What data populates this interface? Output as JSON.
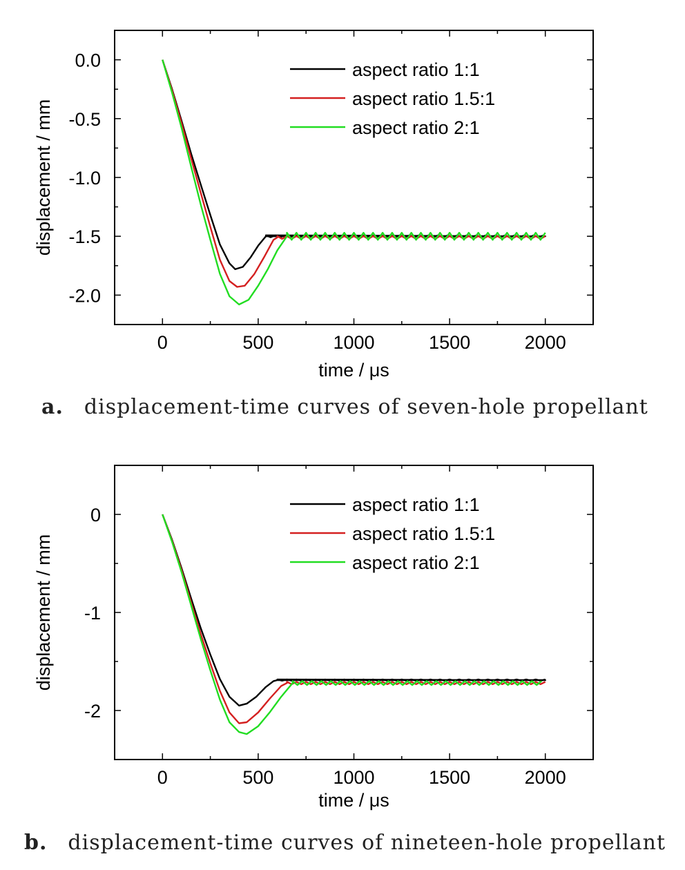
{
  "colors": {
    "ratio_1": "#000000",
    "ratio_1_5": "#d42020",
    "ratio_2": "#22dd22"
  },
  "chart_data": [
    {
      "type": "line",
      "caption_letter": "a.",
      "caption": "displacement-time curves of seven-hole propellant",
      "xlabel": "time / μs",
      "ylabel": "displacement / mm",
      "xlim": [
        -250,
        2250
      ],
      "ylim": [
        -2.25,
        0.25
      ],
      "xticks": [
        0,
        500,
        1000,
        1500,
        2000
      ],
      "xtick_labels": [
        "0",
        "500",
        "1000",
        "1500",
        "2000"
      ],
      "yticks": [
        0.0,
        -0.5,
        -1.0,
        -1.5,
        -2.0
      ],
      "ytick_labels": [
        "0.0",
        "-0.5",
        "-1.0",
        "-1.5",
        "-2.0"
      ],
      "legend_position": "top-right",
      "series": [
        {
          "name": "aspect ratio 1:1",
          "color": "#000000",
          "points": [
            [
              0,
              0
            ],
            [
              50,
              -0.25
            ],
            [
              100,
              -0.52
            ],
            [
              150,
              -0.8
            ],
            [
              200,
              -1.06
            ],
            [
              250,
              -1.32
            ],
            [
              300,
              -1.57
            ],
            [
              350,
              -1.73
            ],
            [
              380,
              -1.78
            ],
            [
              420,
              -1.76
            ],
            [
              460,
              -1.68
            ],
            [
              500,
              -1.58
            ],
            [
              540,
              -1.5
            ],
            [
              2000,
              -1.5
            ]
          ],
          "plateau": -1.5,
          "plateau_start": 540,
          "ripple_amp": 0.008,
          "ripple_period": 50
        },
        {
          "name": "aspect ratio 1.5:1",
          "color": "#d42020",
          "points": [
            [
              0,
              0
            ],
            [
              50,
              -0.26
            ],
            [
              100,
              -0.54
            ],
            [
              150,
              -0.84
            ],
            [
              200,
              -1.13
            ],
            [
              250,
              -1.42
            ],
            [
              300,
              -1.7
            ],
            [
              350,
              -1.88
            ],
            [
              390,
              -1.93
            ],
            [
              430,
              -1.92
            ],
            [
              480,
              -1.82
            ],
            [
              530,
              -1.68
            ],
            [
              580,
              -1.53
            ],
            [
              600,
              -1.51
            ]
          ],
          "plateau": -1.51,
          "plateau_start": 600,
          "ripple_amp": 0.012,
          "ripple_period": 50
        },
        {
          "name": "aspect ratio 2:1",
          "color": "#22dd22",
          "points": [
            [
              0,
              0
            ],
            [
              50,
              -0.28
            ],
            [
              100,
              -0.58
            ],
            [
              150,
              -0.91
            ],
            [
              200,
              -1.23
            ],
            [
              250,
              -1.53
            ],
            [
              300,
              -1.82
            ],
            [
              350,
              -2.01
            ],
            [
              400,
              -2.08
            ],
            [
              450,
              -2.04
            ],
            [
              500,
              -1.92
            ],
            [
              550,
              -1.78
            ],
            [
              600,
              -1.62
            ],
            [
              650,
              -1.5
            ]
          ],
          "plateau": -1.5,
          "plateau_start": 650,
          "ripple_amp": 0.03,
          "ripple_period": 50
        }
      ]
    },
    {
      "type": "line",
      "caption_letter": "b.",
      "caption": "displacement-time curves of nineteen-hole propellant",
      "xlabel": "time / μs",
      "ylabel": "displacement / mm",
      "xlim": [
        -250,
        2250
      ],
      "ylim": [
        -2.5,
        0.5
      ],
      "xticks": [
        0,
        500,
        1000,
        1500,
        2000
      ],
      "xtick_labels": [
        "0",
        "500",
        "1000",
        "1500",
        "2000"
      ],
      "yticks": [
        0,
        -1,
        -2
      ],
      "ytick_labels": [
        "0",
        "-1",
        "-2"
      ],
      "legend_position": "top-right",
      "series": [
        {
          "name": "aspect ratio 1:1",
          "color": "#000000",
          "points": [
            [
              0,
              0
            ],
            [
              50,
              -0.26
            ],
            [
              100,
              -0.55
            ],
            [
              150,
              -0.86
            ],
            [
              200,
              -1.16
            ],
            [
              250,
              -1.43
            ],
            [
              300,
              -1.68
            ],
            [
              350,
              -1.86
            ],
            [
              400,
              -1.95
            ],
            [
              440,
              -1.93
            ],
            [
              490,
              -1.86
            ],
            [
              540,
              -1.76
            ],
            [
              580,
              -1.7
            ],
            [
              600,
              -1.69
            ],
            [
              2000,
              -1.69
            ]
          ],
          "plateau": -1.69,
          "plateau_start": 600,
          "ripple_amp": 0.006,
          "ripple_period": 50
        },
        {
          "name": "aspect ratio 1.5:1",
          "color": "#d42020",
          "points": [
            [
              0,
              0
            ],
            [
              50,
              -0.27
            ],
            [
              100,
              -0.57
            ],
            [
              150,
              -0.9
            ],
            [
              200,
              -1.22
            ],
            [
              250,
              -1.52
            ],
            [
              300,
              -1.8
            ],
            [
              350,
              -2.02
            ],
            [
              400,
              -2.13
            ],
            [
              440,
              -2.12
            ],
            [
              500,
              -2.02
            ],
            [
              560,
              -1.88
            ],
            [
              620,
              -1.75
            ],
            [
              650,
              -1.72
            ]
          ],
          "plateau": -1.72,
          "plateau_start": 650,
          "ripple_amp": 0.012,
          "ripple_period": 50
        },
        {
          "name": "aspect ratio 2:1",
          "color": "#22dd22",
          "points": [
            [
              0,
              0
            ],
            [
              50,
              -0.28
            ],
            [
              100,
              -0.59
            ],
            [
              150,
              -0.93
            ],
            [
              200,
              -1.27
            ],
            [
              250,
              -1.59
            ],
            [
              300,
              -1.89
            ],
            [
              350,
              -2.12
            ],
            [
              400,
              -2.22
            ],
            [
              440,
              -2.24
            ],
            [
              500,
              -2.16
            ],
            [
              560,
              -2.02
            ],
            [
              620,
              -1.86
            ],
            [
              680,
              -1.72
            ]
          ],
          "plateau": -1.72,
          "plateau_start": 680,
          "ripple_amp": 0.02,
          "ripple_period": 50
        }
      ]
    }
  ]
}
